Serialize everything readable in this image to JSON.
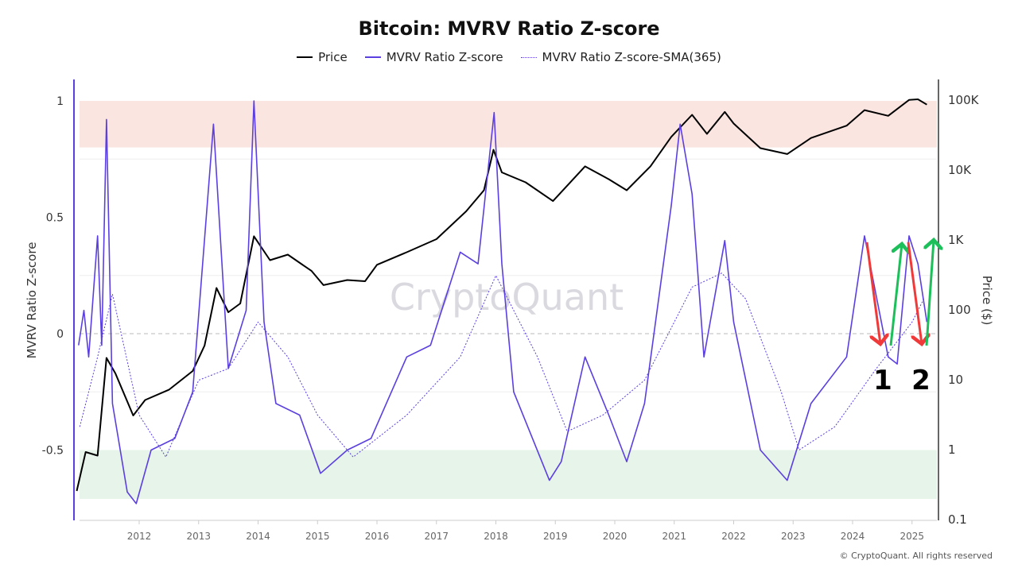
{
  "chart_data": {
    "type": "line",
    "title": "Bitcoin: MVRV Ratio Z-score",
    "ylabel_left": "MVRV Ratio Z-score",
    "ylabel_right": "Price ($)",
    "xlabel": "",
    "x_ticks": [
      "2012",
      "2013",
      "2014",
      "2015",
      "2016",
      "2017",
      "2018",
      "2019",
      "2020",
      "2021",
      "2022",
      "2023",
      "2024",
      "2025"
    ],
    "y_left_ticks": [
      "1",
      "0.5",
      "0",
      "-0.5"
    ],
    "y_left_tick_values": [
      1,
      0.5,
      0,
      -0.5
    ],
    "y_right_ticks": [
      "100K",
      "10K",
      "1K",
      "100",
      "10",
      "1",
      "0.1"
    ],
    "y_right_tick_values": [
      100000,
      10000,
      1000,
      100,
      10,
      1,
      0.1
    ],
    "y_right_scale": "log",
    "ylim_left": [
      -0.8,
      1.1
    ],
    "ylim_right": [
      0.1,
      150000
    ],
    "grid": true,
    "legend_position": "top",
    "zones": [
      {
        "from": 0.8,
        "to": 1.0,
        "color": "#fbe5e1"
      },
      {
        "from": -0.71,
        "to": -0.5,
        "color": "#e6f4ea"
      }
    ],
    "series": [
      {
        "name": "Price",
        "axis": "right",
        "color": "#000000",
        "style": "solid",
        "x": [
          2010.95,
          2011.1,
          2011.3,
          2011.45,
          2011.6,
          2011.9,
          2012.1,
          2012.5,
          2012.9,
          2013.1,
          2013.3,
          2013.5,
          2013.7,
          2013.93,
          2014.2,
          2014.5,
          2014.9,
          2015.1,
          2015.5,
          2015.8,
          2016.0,
          2016.5,
          2017.0,
          2017.5,
          2017.8,
          2017.96,
          2018.1,
          2018.5,
          2018.96,
          2019.5,
          2019.9,
          2020.2,
          2020.6,
          2020.95,
          2021.3,
          2021.55,
          2021.85,
          2022.0,
          2022.45,
          2022.9,
          2023.3,
          2023.9,
          2024.2,
          2024.6,
          2024.95,
          2025.1,
          2025.25
        ],
        "y": [
          0.25,
          0.9,
          0.8,
          20,
          12,
          3,
          5,
          7,
          13,
          30,
          200,
          90,
          120,
          1100,
          500,
          600,
          350,
          220,
          260,
          250,
          430,
          650,
          1000,
          2500,
          5000,
          19000,
          9000,
          6500,
          3500,
          11000,
          7200,
          5000,
          11000,
          29000,
          60000,
          32000,
          66000,
          45000,
          20000,
          16500,
          28000,
          42000,
          70000,
          58000,
          98000,
          100000,
          84000
        ]
      },
      {
        "name": "MVRV Ratio Z-score",
        "axis": "left",
        "color": "#5b3fe0",
        "style": "solid",
        "x": [
          2010.98,
          2011.07,
          2011.15,
          2011.3,
          2011.37,
          2011.45,
          2011.55,
          2011.8,
          2011.95,
          2012.2,
          2012.6,
          2012.9,
          2013.25,
          2013.5,
          2013.8,
          2013.93,
          2014.1,
          2014.3,
          2014.7,
          2015.05,
          2015.5,
          2015.9,
          2016.5,
          2016.9,
          2017.4,
          2017.7,
          2017.97,
          2018.1,
          2018.3,
          2018.9,
          2019.1,
          2019.5,
          2019.9,
          2020.2,
          2020.5,
          2020.95,
          2021.1,
          2021.3,
          2021.5,
          2021.85,
          2022.0,
          2022.45,
          2022.9,
          2023.3,
          2023.9,
          2024.2,
          2024.6,
          2024.75,
          2024.95,
          2025.1,
          2025.25
        ],
        "y": [
          -0.05,
          0.1,
          -0.1,
          0.42,
          -0.05,
          0.92,
          -0.3,
          -0.68,
          -0.73,
          -0.5,
          -0.45,
          -0.25,
          0.9,
          -0.15,
          0.1,
          1.0,
          0.05,
          -0.3,
          -0.35,
          -0.6,
          -0.5,
          -0.45,
          -0.1,
          -0.05,
          0.35,
          0.3,
          0.95,
          0.3,
          -0.25,
          -0.63,
          -0.55,
          -0.1,
          -0.35,
          -0.55,
          -0.3,
          0.55,
          0.9,
          0.6,
          -0.1,
          0.4,
          0.05,
          -0.5,
          -0.63,
          -0.3,
          -0.1,
          0.42,
          -0.1,
          -0.13,
          0.42,
          0.3,
          0.05
        ]
      },
      {
        "name": "MVRV Ratio Z-score-SMA(365)",
        "axis": "left",
        "color": "#5b3fe0",
        "style": "dotted",
        "x": [
          2011.0,
          2011.3,
          2011.55,
          2012.0,
          2012.45,
          2013.0,
          2013.5,
          2014.0,
          2014.5,
          2015.0,
          2015.6,
          2016.5,
          2017.4,
          2018.0,
          2018.7,
          2019.2,
          2019.8,
          2020.5,
          2021.0,
          2021.3,
          2021.8,
          2022.2,
          2022.8,
          2023.1,
          2023.7,
          2024.4,
          2025.0,
          2025.2
        ],
        "y": [
          -0.4,
          -0.1,
          0.17,
          -0.35,
          -0.53,
          -0.2,
          -0.15,
          0.05,
          -0.1,
          -0.35,
          -0.53,
          -0.35,
          -0.1,
          0.25,
          -0.1,
          -0.42,
          -0.35,
          -0.2,
          0.05,
          0.2,
          0.26,
          0.15,
          -0.25,
          -0.5,
          -0.4,
          -0.15,
          0.05,
          0.15
        ]
      }
    ],
    "annotations": [
      {
        "label": "1",
        "arrows": [
          "red down",
          "green up"
        ]
      },
      {
        "label": "2",
        "arrows": [
          "red down",
          "green up"
        ]
      }
    ]
  },
  "watermark": "CryptoQuant",
  "copyright": "© CryptoQuant. All rights reserved",
  "colors": {
    "zscore": "#5b3fe0",
    "price": "#000000",
    "down_arrow": "#f03a3a",
    "up_arrow": "#1cbf5a"
  }
}
